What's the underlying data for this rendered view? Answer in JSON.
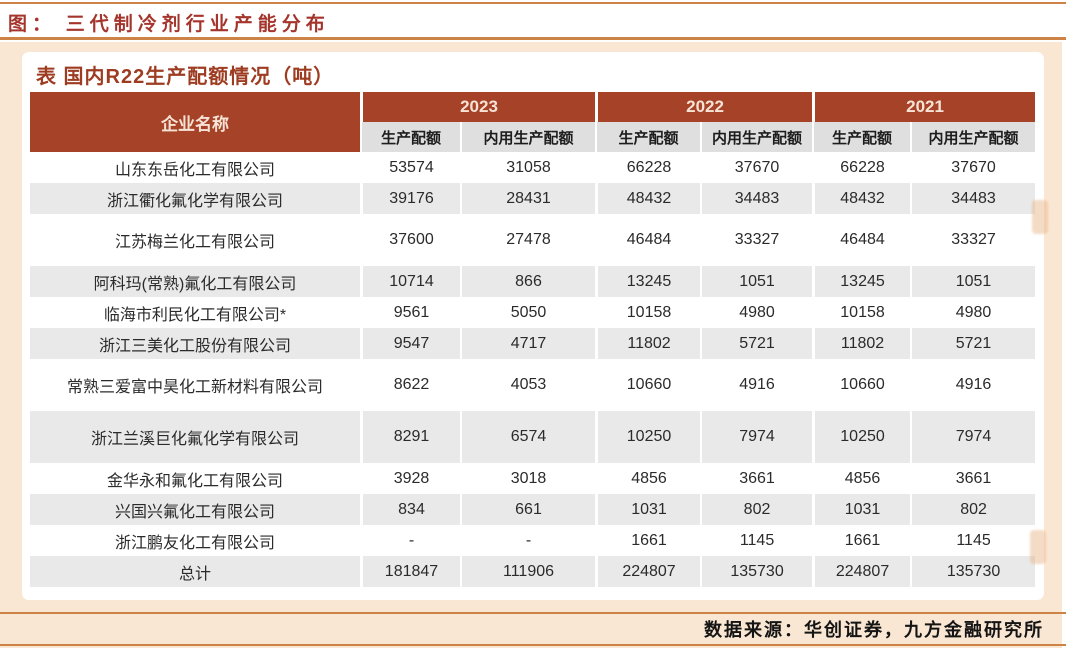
{
  "page": {
    "figure_title": "图： 三代制冷剂行业产能分布",
    "source_note": "数据来源：华创证券，九方金融研究所"
  },
  "table": {
    "title": "表 国内R22生产配额情况（吨）",
    "company_header": "企业名称",
    "year_groups": [
      "2023",
      "2022",
      "2021"
    ],
    "sub_headers": [
      "生产配额",
      "内用生产配额"
    ],
    "rows": [
      {
        "company": "山东东岳化工有限公司",
        "values": [
          "53574",
          "31058",
          "66228",
          "37670",
          "66228",
          "37670"
        ]
      },
      {
        "company": "浙江衢化氟化学有限公司",
        "values": [
          "39176",
          "28431",
          "48432",
          "34483",
          "48432",
          "34483"
        ]
      },
      {
        "company": "江苏梅兰化工有限公司",
        "values": [
          "37600",
          "27478",
          "46484",
          "33327",
          "46484",
          "33327"
        ],
        "tall": true
      },
      {
        "company": "阿科玛(常熟)氟化工有限公司",
        "values": [
          "10714",
          "866",
          "13245",
          "1051",
          "13245",
          "1051"
        ]
      },
      {
        "company": "临海市利民化工有限公司*",
        "values": [
          "9561",
          "5050",
          "10158",
          "4980",
          "10158",
          "4980"
        ]
      },
      {
        "company": "浙江三美化工股份有限公司",
        "values": [
          "9547",
          "4717",
          "11802",
          "5721",
          "11802",
          "5721"
        ]
      },
      {
        "company": "常熟三爱富中昊化工新材料有限公司",
        "values": [
          "8622",
          "4053",
          "10660",
          "4916",
          "10660",
          "4916"
        ],
        "tall": true
      },
      {
        "company": "浙江兰溪巨化氟化学有限公司",
        "values": [
          "8291",
          "6574",
          "10250",
          "7974",
          "10250",
          "7974"
        ],
        "tall": true
      },
      {
        "company": "金华永和氟化工有限公司",
        "values": [
          "3928",
          "3018",
          "4856",
          "3661",
          "4856",
          "3661"
        ]
      },
      {
        "company": "兴国兴氟化工有限公司",
        "values": [
          "834",
          "661",
          "1031",
          "802",
          "1031",
          "802"
        ]
      },
      {
        "company": "浙江鹏友化工有限公司",
        "values": [
          "-",
          "-",
          "1661",
          "1145",
          "1661",
          "1145"
        ]
      },
      {
        "company": "总计",
        "values": [
          "181847",
          "111906",
          "224807",
          "135730",
          "224807",
          "135730"
        ],
        "is_total": true
      }
    ]
  },
  "chart_data": {
    "type": "table",
    "title": "国内R22生产配额情况（吨）",
    "columns": [
      "企业名称",
      "2023 生产配额",
      "2023 内用生产配额",
      "2022 生产配额",
      "2022 内用生产配额",
      "2021 生产配额",
      "2021 内用生产配额"
    ],
    "rows": [
      [
        "山东东岳化工有限公司",
        53574,
        31058,
        66228,
        37670,
        66228,
        37670
      ],
      [
        "浙江衢化氟化学有限公司",
        39176,
        28431,
        48432,
        34483,
        48432,
        34483
      ],
      [
        "江苏梅兰化工有限公司",
        37600,
        27478,
        46484,
        33327,
        46484,
        33327
      ],
      [
        "阿科玛(常熟)氟化工有限公司",
        10714,
        866,
        13245,
        1051,
        13245,
        1051
      ],
      [
        "临海市利民化工有限公司*",
        9561,
        5050,
        10158,
        4980,
        10158,
        4980
      ],
      [
        "浙江三美化工股份有限公司",
        9547,
        4717,
        11802,
        5721,
        11802,
        5721
      ],
      [
        "常熟三爱富中昊化工新材料有限公司",
        8622,
        4053,
        10660,
        4916,
        10660,
        4916
      ],
      [
        "浙江兰溪巨化氟化学有限公司",
        8291,
        6574,
        10250,
        7974,
        10250,
        7974
      ],
      [
        "金华永和氟化工有限公司",
        3928,
        3018,
        4856,
        3661,
        4856,
        3661
      ],
      [
        "兴国兴氟化工有限公司",
        834,
        661,
        1031,
        802,
        1031,
        802
      ],
      [
        "浙江鹏友化工有限公司",
        null,
        null,
        1661,
        1145,
        1661,
        1145
      ],
      [
        "总计",
        181847,
        111906,
        224807,
        135730,
        224807,
        135730
      ]
    ]
  },
  "colors": {
    "header_bg": "#a54228",
    "header_text": "#f6e3d6",
    "subheader_bg": "#e0dfdf",
    "stripe_gray": "#e9e9e9",
    "panel_peach": "#fae7d3",
    "rule_orange": "#ce8346",
    "figure_title_red": "#a5352c",
    "table_title_red": "#9e3c22"
  }
}
